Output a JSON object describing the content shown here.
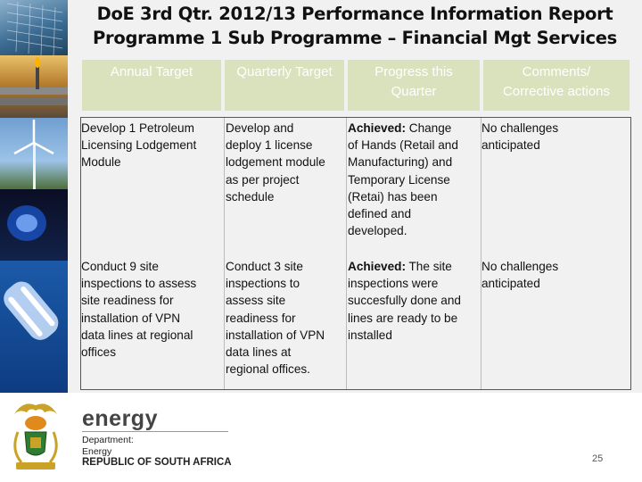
{
  "title": {
    "line1": "DoE 3rd Qtr. 2012/13 Performance Information Report",
    "line2": "Programme 1 Sub Programme – Financial Mgt Services"
  },
  "table": {
    "headers": [
      {
        "l1": "Annual Target",
        "l2": ""
      },
      {
        "l1": "Quarterly Target",
        "l2": ""
      },
      {
        "l1": "Progress this",
        "l2": "Quarter"
      },
      {
        "l1": "Comments/",
        "l2": "Corrective actions"
      }
    ],
    "rows": [
      {
        "annual": [
          "Develop 1 Petroleum",
          "Licensing Lodgement",
          "Module"
        ],
        "quarterly": [
          "Develop and",
          "deploy 1 license",
          "lodgement module",
          "as per project",
          "schedule"
        ],
        "progress_label": "Achieved:",
        "progress_first": " Change",
        "progress": [
          "of Hands (Retail and",
          "Manufacturing) and",
          "Temporary License",
          "(Retai) has been",
          "defined and",
          "developed."
        ],
        "comments": [
          "No challenges",
          "anticipated"
        ]
      },
      {
        "annual": [
          "Conduct 9 site",
          "inspections to assess",
          "site readiness for",
          "installation of VPN",
          "data lines at regional",
          "offices"
        ],
        "quarterly": [
          "Conduct 3 site",
          "inspections to",
          "assess site",
          "readiness for",
          "installation of VPN",
          "data lines at",
          "regional offices."
        ],
        "progress_label": "Achieved:",
        "progress_first": " The site",
        "progress": [
          "inspections were",
          "succesfully done and",
          "lines are ready to be",
          "installed"
        ],
        "comments": [
          "No challenges",
          "anticipated"
        ]
      }
    ]
  },
  "footer": {
    "brand": "energy",
    "dept_lines": [
      "Department:",
      "Energy"
    ],
    "country": "REPUBLIC OF SOUTH AFRICA",
    "page_number": "25"
  },
  "colors": {
    "header_fill": "#d9e2bd",
    "content_bg": "#f1f1f1",
    "sidebar": "#2a4a5a"
  },
  "icons": [
    "coat-of-arms-logo",
    "solar-panel-photo",
    "refinery-photo",
    "wind-turbine-photo",
    "gas-flame-photo",
    "light-bulb-photo"
  ]
}
